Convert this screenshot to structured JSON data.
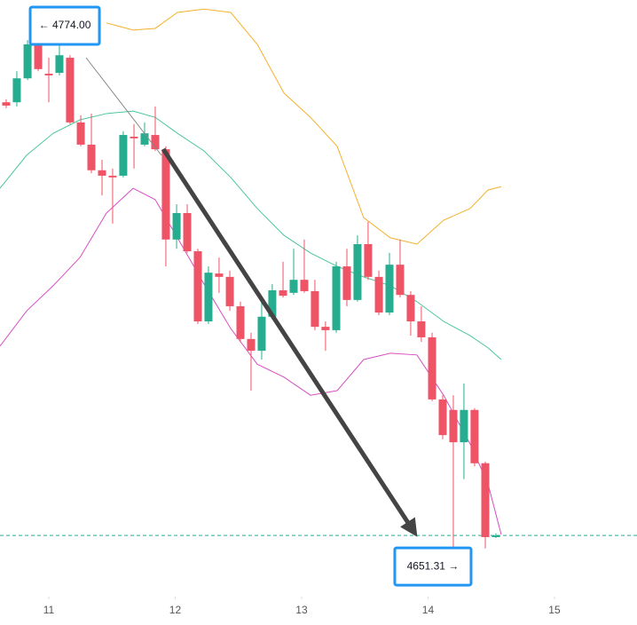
{
  "chart_data": {
    "type": "candlestick",
    "x": [
      10.663,
      10.747,
      10.832,
      10.916,
      11.0,
      11.084,
      11.168,
      11.253,
      11.337,
      11.421,
      11.505,
      11.589,
      11.674,
      11.758,
      11.842,
      11.926,
      12.011,
      12.095,
      12.179,
      12.263,
      12.347,
      12.432,
      12.516,
      12.6,
      12.684,
      12.768,
      12.853,
      12.937,
      13.021,
      13.105,
      13.189,
      13.274,
      13.358,
      13.442,
      13.526,
      13.611,
      13.695,
      13.779,
      13.863,
      13.947,
      14.032,
      14.116,
      14.2,
      14.284,
      14.368,
      14.453,
      14.537
    ],
    "open": [
      4758.1,
      4758.1,
      4763.8,
      4771.9,
      4764.9,
      4765.1,
      4768.7,
      4753.3,
      4748.0,
      4741.9,
      4740.6,
      4740.6,
      4749.9,
      4748.0,
      4750.3,
      4746.9,
      4725.4,
      4731.7,
      4722.6,
      4705.9,
      4717.3,
      4716.5,
      4709.5,
      4701.7,
      4698.9,
      4707.0,
      4713.3,
      4712.7,
      4715.8,
      4713.1,
      4704.6,
      4703.8,
      4719.0,
      4711.0,
      4724.3,
      4716.5,
      4708.0,
      4719.4,
      4712.2,
      4705.9,
      4702.1,
      4687.3,
      4684.8,
      4677.1,
      4684.8,
      4672.1,
      4654.5
    ],
    "high": [
      4758.8,
      4765.5,
      4772.9,
      4774.0,
      4768.7,
      4772.9,
      4769.3,
      4755.0,
      4755.4,
      4744.4,
      4742.3,
      4751.2,
      4752.9,
      4753.3,
      4757.1,
      4747.6,
      4733.8,
      4733.8,
      4723.2,
      4719.0,
      4721.1,
      4718.0,
      4710.6,
      4703.2,
      4710.6,
      4714.8,
      4720.1,
      4723.2,
      4725.4,
      4715.8,
      4705.9,
      4720.1,
      4723.2,
      4726.4,
      4729.6,
      4718.0,
      4722.2,
      4725.4,
      4713.1,
      4709.5,
      4703.2,
      4688.3,
      4688.3,
      4691.1,
      4685.2,
      4672.5,
      4655.4
    ],
    "low": [
      4756.7,
      4757.1,
      4763.4,
      4765.5,
      4758.1,
      4764.5,
      4752.9,
      4747.6,
      4741.2,
      4735.9,
      4729.2,
      4740.2,
      4742.3,
      4747.6,
      4746.5,
      4719.0,
      4723.2,
      4722.2,
      4705.3,
      4705.3,
      4712.7,
      4708.4,
      4701.0,
      4689.4,
      4696.8,
      4706.3,
      4711.6,
      4712.2,
      4712.7,
      4703.8,
      4698.9,
      4703.2,
      4709.5,
      4710.6,
      4715.8,
      4707.4,
      4707.4,
      4711.6,
      4702.5,
      4701.0,
      4686.9,
      4677.8,
      4651.31,
      4668.3,
      4671.4,
      4651.8,
      4654.3
    ],
    "close": [
      4757.3,
      4763.8,
      4771.9,
      4766.0,
      4764.5,
      4769.3,
      4753.3,
      4748.0,
      4741.9,
      4740.6,
      4740.2,
      4750.3,
      4749.5,
      4750.7,
      4746.9,
      4725.4,
      4731.7,
      4722.6,
      4705.9,
      4717.5,
      4716.5,
      4709.5,
      4701.7,
      4698.9,
      4707.0,
      4713.3,
      4712.0,
      4715.8,
      4713.1,
      4704.6,
      4703.8,
      4719.0,
      4711.0,
      4724.3,
      4716.5,
      4708.0,
      4719.4,
      4712.2,
      4705.9,
      4702.1,
      4687.3,
      4678.8,
      4677.1,
      4684.8,
      4672.1,
      4654.5,
      4654.9
    ],
    "up_color": "#26ad8f",
    "down_color": "#ef5366",
    "overlay_x": [
      10.614,
      10.825,
      11.035,
      11.246,
      11.456,
      11.667,
      11.842,
      12.018,
      12.228,
      12.439,
      12.649,
      12.86,
      13.07,
      13.281,
      13.491,
      13.702,
      13.912,
      14.123,
      14.333,
      14.474,
      14.579
    ],
    "overlays": [
      {
        "color": "#f5b12e",
        "values": [
          null,
          null,
          null,
          null,
          4777.0,
          4775.3,
          4775.7,
          4779.5,
          4780.3,
          4779.5,
          4771.9,
          4760.3,
          4754.5,
          4747.6,
          4730.6,
          4725.8,
          4724.3,
          4730.0,
          4732.8,
          4737.2,
          4738.0
        ]
      },
      {
        "color": "#4cc79c",
        "values": [
          4737.6,
          4745.5,
          4750.7,
          4753.9,
          4755.4,
          4756.0,
          4754.5,
          4750.7,
          4746.5,
          4740.2,
          4732.8,
          4726.4,
          4722.2,
          4719.0,
          4716.5,
          4714.4,
          4710.6,
          4705.9,
          4702.5,
          4699.6,
          4696.8
        ]
      },
      {
        "color": "#d64fc4",
        "values": [
          4700.0,
          4708.4,
          4714.4,
          4721.1,
          4731.7,
          4737.6,
          4734.9,
          4725.8,
          4714.8,
          4704.2,
          4695.7,
          4692.6,
          4688.3,
          4689.4,
          4696.8,
          4698.3,
          4697.9,
          4688.3,
          4676.7,
          4667.2,
          4655.1
        ]
      }
    ],
    "annotations": [
      {
        "label": "← 4774.00",
        "x": 10.916,
        "y": 4774.0
      },
      {
        "label": "4651.31 →",
        "x": 14.2,
        "y": 4651.31
      }
    ],
    "xlim": [
      10.614,
      15.653
    ],
    "ylim": [
      4640.33,
      4782.46
    ],
    "xticks": [
      11,
      12,
      13,
      14,
      15
    ]
  }
}
